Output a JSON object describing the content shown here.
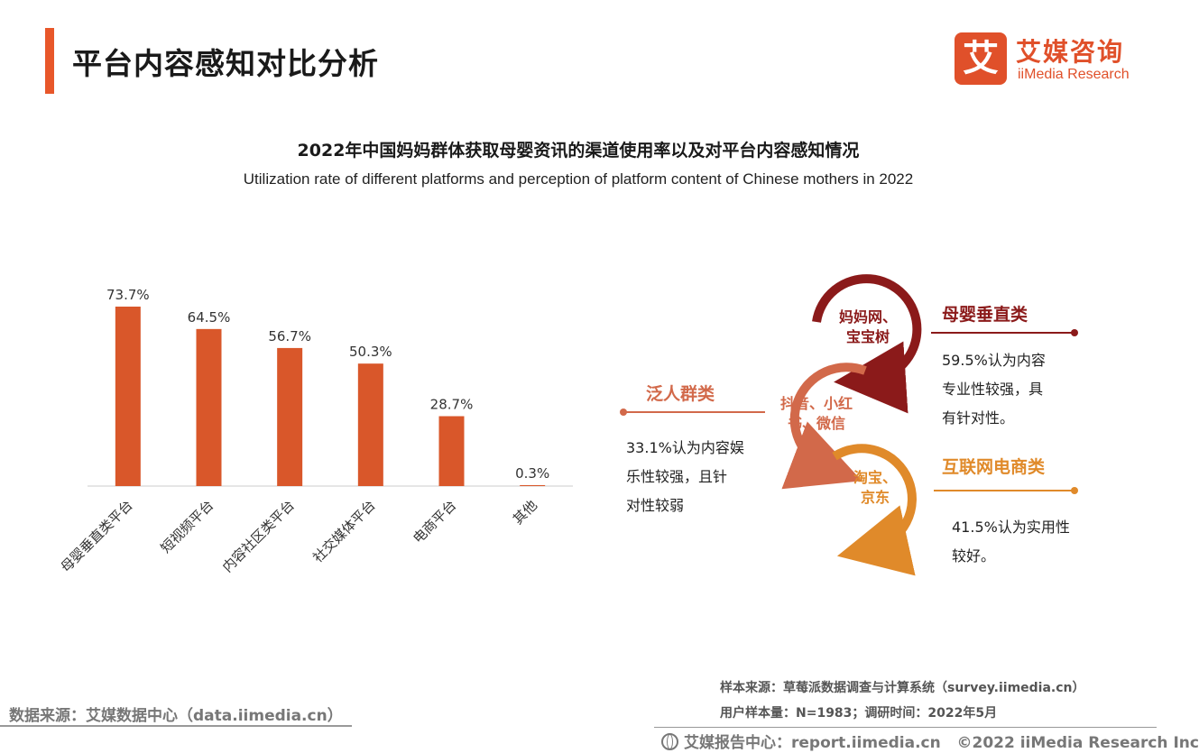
{
  "header": {
    "title": "平台内容感知对比分析",
    "logo": {
      "mark": "艾",
      "cn": "艾媒咨询",
      "en": "iiMedia Research"
    }
  },
  "chart_title": {
    "cn": "2022年中国妈妈群体获取母婴资讯的渠道使用率以及对平台内容感知情况",
    "en": "Utilization rate of different platforms and perception of platform content of Chinese mothers in 2022"
  },
  "chart_data": {
    "type": "bar",
    "categories": [
      "母婴垂直类平台",
      "短视频平台",
      "内容社区类平台",
      "社交媒体平台",
      "电商平台",
      "其他"
    ],
    "values": [
      73.7,
      64.5,
      56.7,
      50.3,
      28.7,
      0.3
    ],
    "labels": [
      "73.7%",
      "64.5%",
      "56.7%",
      "50.3%",
      "28.7%",
      "0.3%"
    ],
    "ylim": [
      0,
      80
    ],
    "color": "#d9572a"
  },
  "perception": {
    "items": [
      {
        "circle_text": [
          "妈妈网、",
          "宝宝树"
        ],
        "category": "母婴垂直类",
        "desc": [
          "59.5%认为内容",
          "专业性较强，具",
          "有针对性。"
        ],
        "color": "#8b1a1a"
      },
      {
        "circle_text": [
          "抖音、小红",
          "书、微信"
        ],
        "category": "泛人群类",
        "desc": [
          "33.1%认为内容娱",
          "乐性较强，且针",
          "对性较弱"
        ],
        "color": "#d2694a"
      },
      {
        "circle_text": [
          "淘宝、",
          "京东"
        ],
        "category": "互联网电商类",
        "desc": [
          "41.5%认为实用性",
          "较好。"
        ],
        "color": "#e08a2a"
      }
    ]
  },
  "footer": {
    "data_source": "数据来源：艾媒数据中心（data.iimedia.cn）",
    "sample_source": "样本来源：草莓派数据调查与计算系统（survey.iimedia.cn）",
    "sample_size": "用户样本量：N=1983；调研时间：2022年5月",
    "report_center": "艾媒报告中心：report.iimedia.cn",
    "copyright": "©2022  iiMedia Research  Inc"
  }
}
